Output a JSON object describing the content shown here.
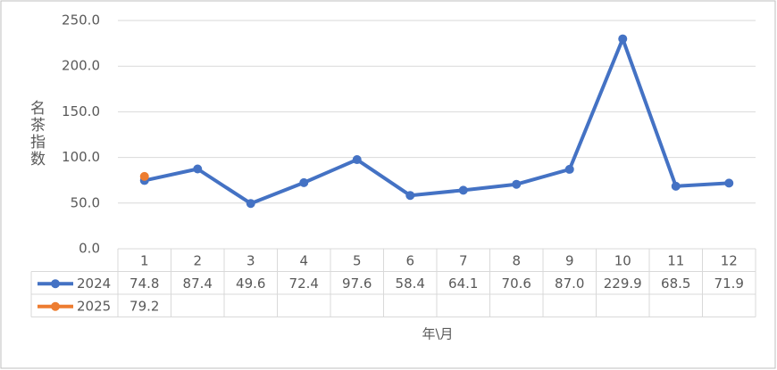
{
  "chart_data": {
    "type": "line",
    "y_label": "名茶指数",
    "x_label": "年\\月",
    "categories": [
      "1",
      "2",
      "3",
      "4",
      "5",
      "6",
      "7",
      "8",
      "9",
      "10",
      "11",
      "12"
    ],
    "series": [
      {
        "name": "2024",
        "color": "#4472c4",
        "values": [
          74.8,
          87.4,
          49.6,
          72.4,
          97.6,
          58.4,
          64.1,
          70.6,
          87.0,
          229.9,
          68.5,
          71.9
        ],
        "value_labels": [
          "74.8",
          "87.4",
          "49.6",
          "72.4",
          "97.6",
          "58.4",
          "64.1",
          "70.6",
          "87.0",
          "229.9",
          "68.5",
          "71.9"
        ]
      },
      {
        "name": "2025",
        "color": "#ed7d31",
        "values": [
          79.2,
          null,
          null,
          null,
          null,
          null,
          null,
          null,
          null,
          null,
          null,
          null
        ],
        "value_labels": [
          "79.2",
          null,
          null,
          null,
          null,
          null,
          null,
          null,
          null,
          null,
          null,
          null
        ]
      }
    ],
    "ylim": [
      0,
      250
    ],
    "yticks": [
      {
        "value": 0,
        "label": "0.0"
      },
      {
        "value": 50,
        "label": "50.0"
      },
      {
        "value": 100,
        "label": "100.0"
      },
      {
        "value": 150,
        "label": "150.0"
      },
      {
        "value": 200,
        "label": "200.0"
      },
      {
        "value": 250,
        "label": "250.0"
      }
    ],
    "grid": true
  }
}
